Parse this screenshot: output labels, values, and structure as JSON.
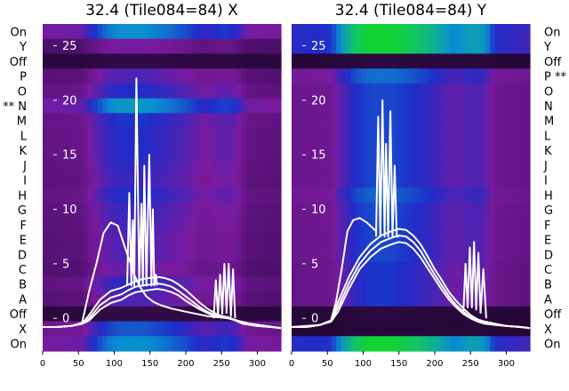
{
  "chart_data": [
    {
      "type": "heatmap",
      "title": "32.4 (Tile084=84) X",
      "rows": [
        "On",
        "Y",
        "Off",
        "P",
        "O",
        "N",
        "M",
        "L",
        "K",
        "J",
        "I",
        "H",
        "G",
        "F",
        "E",
        "D",
        "C",
        "B",
        "A",
        "Off",
        "X",
        "On"
      ],
      "row_annotations": {
        "N": "**"
      },
      "row_label_side": "left",
      "xlim": [
        0,
        333
      ],
      "xticks": [
        0,
        50,
        100,
        150,
        200,
        250,
        300
      ],
      "overlay_yticks": [
        0,
        5,
        10,
        15,
        20,
        25
      ],
      "overlay_ylim": [
        -3,
        27
      ],
      "colormap": [
        "#1a0528",
        "#4a0f68",
        "#7a1a9e",
        "#1f2cc9",
        "#0a8fd0",
        "#10c070",
        "#12e010"
      ],
      "row_intensity": {
        "On": 0.68,
        "Y": 0.35,
        "Off": 0.08,
        "P": 0.42,
        "O": 0.5,
        "N": 0.7,
        "M": 0.52,
        "L": 0.5,
        "K": 0.5,
        "J": 0.48,
        "I": 0.46,
        "H": 0.5,
        "G": 0.46,
        "F": 0.44,
        "E": 0.42,
        "D": 0.42,
        "C": 0.38,
        "B": 0.48,
        "A": 0.42,
        "X": 0.58
      },
      "column_profile": {
        "x": [
          0,
          55,
          70,
          90,
          110,
          140,
          170,
          200,
          225,
          240,
          255,
          270,
          285,
          333
        ],
        "v": [
          0.2,
          0.25,
          0.5,
          0.75,
          0.85,
          0.85,
          0.75,
          0.62,
          0.45,
          0.5,
          0.55,
          0.5,
          0.22,
          0.15
        ]
      },
      "series": [
        {
          "name": "",
          "x": [
            0,
            20,
            40,
            55,
            65,
            80,
            95,
            110,
            120,
            130,
            140,
            150,
            160,
            170,
            180,
            190,
            200,
            210,
            220,
            230,
            240,
            250,
            260,
            270,
            280,
            300,
            320,
            333
          ],
          "y": [
            -0.8,
            -0.8,
            -0.7,
            -0.5,
            0,
            1.2,
            1.9,
            2.2,
            2.6,
            2.9,
            3.0,
            3.1,
            3.2,
            3.1,
            2.9,
            2.5,
            2.0,
            1.5,
            1.0,
            0.6,
            0.3,
            0.1,
            0.0,
            -0.2,
            -0.5,
            -0.7,
            -0.8,
            -0.9
          ]
        },
        {
          "name": "",
          "x": [
            0,
            20,
            40,
            55,
            65,
            80,
            95,
            110,
            120,
            130,
            140,
            150,
            160,
            170,
            180,
            190,
            200,
            210,
            220,
            230,
            240,
            250,
            260,
            270,
            280,
            300,
            320,
            333
          ],
          "y": [
            -0.8,
            -0.8,
            -0.7,
            -0.5,
            0.3,
            1.7,
            2.5,
            2.8,
            3.1,
            3.4,
            3.6,
            3.7,
            3.8,
            3.7,
            3.5,
            3.1,
            2.6,
            2.0,
            1.4,
            0.9,
            0.5,
            0.2,
            0.1,
            -0.2,
            -0.5,
            -0.7,
            -0.8,
            -0.9
          ]
        },
        {
          "name": "",
          "x": [
            0,
            20,
            40,
            55,
            65,
            80,
            95,
            110,
            120,
            130,
            140,
            150,
            160,
            170,
            180,
            190,
            200,
            210,
            220,
            230,
            240,
            250,
            260,
            270,
            280,
            300,
            320,
            333
          ],
          "y": [
            -0.8,
            -0.8,
            -0.7,
            -0.5,
            -0.2,
            0.8,
            1.4,
            1.7,
            2.1,
            2.4,
            2.5,
            2.6,
            2.7,
            2.6,
            2.4,
            2.1,
            1.6,
            1.2,
            0.8,
            0.5,
            0.2,
            0.1,
            0.0,
            -0.2,
            -0.5,
            -0.7,
            -0.8,
            -0.9
          ]
        },
        {
          "name": "",
          "x": [
            0,
            20,
            40,
            55,
            65,
            75,
            85,
            95,
            105,
            115,
            123,
            128,
            135,
            145,
            155,
            165,
            180,
            200,
            230,
            260,
            290,
            333
          ],
          "y": [
            -0.8,
            -0.8,
            -0.7,
            -0.4,
            2.5,
            5.0,
            7.8,
            8.8,
            8.5,
            6.5,
            5.0,
            4.0,
            3.0,
            2.0,
            1.5,
            1.2,
            0.9,
            0.6,
            0.2,
            0.0,
            -0.5,
            -0.9
          ]
        },
        {
          "name": "",
          "x": [
            118,
            121,
            124,
            126,
            128,
            131,
            135,
            138,
            140,
            142,
            145,
            149,
            152,
            154,
            156,
            158,
            160
          ],
          "y": [
            3.0,
            11.5,
            3.0,
            9.0,
            3.0,
            22.0,
            3.0,
            10.5,
            3.0,
            14.0,
            3.0,
            15.0,
            3.0,
            10.0,
            3.0,
            4.0,
            3.0
          ]
        },
        {
          "name": "",
          "x": [
            239,
            242,
            245,
            248,
            251,
            254,
            257,
            260,
            263,
            266,
            269
          ],
          "y": [
            0.0,
            3.5,
            0.2,
            4.0,
            0.4,
            5.0,
            0.5,
            5.0,
            0.2,
            4.5,
            0.0
          ]
        }
      ]
    },
    {
      "type": "heatmap",
      "title": "32.4 (Tile084=84) Y",
      "rows": [
        "On",
        "Y",
        "Off",
        "P",
        "O",
        "N",
        "M",
        "L",
        "K",
        "J",
        "I",
        "H",
        "G",
        "F",
        "E",
        "D",
        "C",
        "B",
        "A",
        "Off",
        "X",
        "On"
      ],
      "row_annotations": {
        "P": "**"
      },
      "row_label_side": "right",
      "xlim": [
        0,
        333
      ],
      "xticks": [
        0,
        50,
        100,
        150,
        200,
        250,
        300
      ],
      "overlay_yticks": [
        0,
        5,
        10,
        15,
        20,
        25
      ],
      "overlay_ylim": [
        -3,
        27
      ],
      "colormap": [
        "#1a0528",
        "#4a0f68",
        "#7a1a9e",
        "#1f2cc9",
        "#0a8fd0",
        "#10c070",
        "#12e010"
      ],
      "row_intensity": {
        "On": 0.95,
        "Y": 0.95,
        "Off": 0.06,
        "P": 0.62,
        "O": 0.55,
        "N": 0.55,
        "M": 0.55,
        "L": 0.55,
        "K": 0.55,
        "J": 0.55,
        "I": 0.55,
        "H": 0.6,
        "G": 0.56,
        "F": 0.55,
        "E": 0.55,
        "D": 0.55,
        "C": 0.52,
        "B": 0.52,
        "A": 0.52,
        "X": 0.05
      },
      "column_profile": {
        "x": [
          0,
          55,
          70,
          90,
          110,
          140,
          170,
          200,
          225,
          240,
          255,
          270,
          285,
          333
        ],
        "v": [
          0.2,
          0.25,
          0.5,
          0.75,
          0.85,
          0.85,
          0.75,
          0.62,
          0.45,
          0.5,
          0.55,
          0.5,
          0.22,
          0.15
        ]
      },
      "series": [
        {
          "name": "",
          "x": [
            0,
            20,
            40,
            55,
            65,
            80,
            95,
            110,
            125,
            140,
            150,
            160,
            170,
            180,
            190,
            200,
            210,
            220,
            230,
            240,
            250,
            260,
            270,
            285,
            300,
            320,
            333
          ],
          "y": [
            -0.8,
            -0.8,
            -0.6,
            -0.2,
            1.0,
            3.2,
            5.0,
            6.2,
            7.0,
            7.4,
            7.6,
            7.5,
            7.0,
            6.2,
            5.1,
            4.0,
            3.0,
            2.0,
            1.2,
            0.6,
            0.1,
            -0.2,
            -0.4,
            -0.6,
            -0.7,
            -0.8,
            -0.9
          ]
        },
        {
          "name": "",
          "x": [
            0,
            20,
            40,
            55,
            65,
            80,
            95,
            110,
            125,
            140,
            150,
            160,
            170,
            180,
            190,
            200,
            210,
            220,
            230,
            240,
            250,
            260,
            270,
            285,
            300,
            320,
            333
          ],
          "y": [
            -0.8,
            -0.8,
            -0.6,
            -0.2,
            1.5,
            3.8,
            5.6,
            6.8,
            7.6,
            8.0,
            8.2,
            8.1,
            7.6,
            6.8,
            5.7,
            4.5,
            3.5,
            2.4,
            1.6,
            0.9,
            0.3,
            -0.1,
            -0.3,
            -0.5,
            -0.7,
            -0.8,
            -0.9
          ]
        },
        {
          "name": "",
          "x": [
            0,
            20,
            40,
            55,
            65,
            80,
            95,
            110,
            125,
            140,
            150,
            160,
            170,
            180,
            190,
            200,
            210,
            220,
            230,
            240,
            250,
            260,
            270,
            285,
            300,
            320,
            333
          ],
          "y": [
            -0.8,
            -0.8,
            -0.6,
            -0.3,
            0.6,
            2.7,
            4.5,
            5.6,
            6.4,
            6.8,
            7.0,
            6.9,
            6.4,
            5.6,
            4.6,
            3.6,
            2.6,
            1.7,
            1.0,
            0.4,
            0.0,
            -0.3,
            -0.5,
            -0.6,
            -0.7,
            -0.8,
            -0.9
          ]
        },
        {
          "name": "",
          "x": [
            0,
            40,
            55,
            62,
            70,
            78,
            86,
            95,
            105,
            118
          ],
          "y": [
            -0.8,
            -0.6,
            -0.2,
            1.5,
            4.5,
            8.0,
            9.0,
            9.2,
            8.8,
            8.0
          ]
        },
        {
          "name": "",
          "x": [
            118,
            121,
            124,
            127,
            130,
            132,
            135,
            138,
            141,
            144,
            147,
            150
          ],
          "y": [
            7.5,
            18.5,
            7.5,
            20.0,
            7.5,
            16.0,
            7.5,
            19.0,
            7.5,
            14.0,
            7.5,
            7.5
          ]
        },
        {
          "name": "",
          "x": [
            240,
            243,
            246,
            249,
            252,
            255,
            258,
            261,
            264,
            268,
            272
          ],
          "y": [
            0.5,
            5.0,
            1.0,
            6.5,
            1.0,
            7.0,
            0.8,
            6.0,
            0.5,
            4.5,
            0.0
          ]
        }
      ]
    }
  ]
}
